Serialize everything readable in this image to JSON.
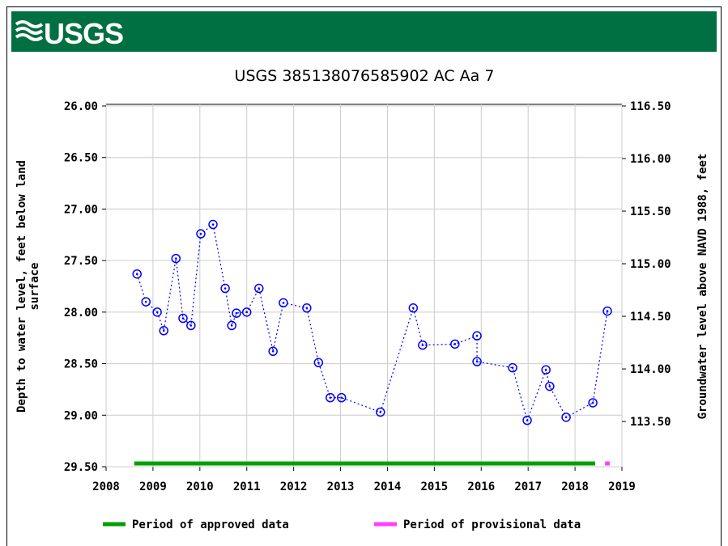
{
  "header": {
    "logo": "USGS"
  },
  "chart_data": {
    "type": "scatter",
    "title": "USGS 385138076585902 AC Aa   7",
    "y_label": [
      "Depth to water level, feet below land",
      "surface"
    ],
    "y2_label": "Groundwater level above NAVD 1988, feet",
    "xlim": [
      2008,
      2019
    ],
    "xticks": [
      2008,
      2009,
      2010,
      2011,
      2012,
      2013,
      2014,
      2015,
      2016,
      2017,
      2018,
      2019
    ],
    "ylim": [
      26,
      29.5
    ],
    "invert_y": true,
    "yticks": [
      {
        "value": 26,
        "label": "26.00"
      },
      {
        "value": 26.5,
        "label": "26.50"
      },
      {
        "value": 27,
        "label": "27.00"
      },
      {
        "value": 27.5,
        "label": "27.50"
      },
      {
        "value": 28,
        "label": "28.00"
      },
      {
        "value": 28.5,
        "label": "28.50"
      },
      {
        "value": 29,
        "label": "29.00"
      },
      {
        "value": 29.5,
        "label": "29.50"
      }
    ],
    "y2lim": [
      113.07,
      116.5
    ],
    "y2ticks": [
      {
        "value": 116.5,
        "label": "116.50"
      },
      {
        "value": 116,
        "label": "116.00"
      },
      {
        "value": 115.5,
        "label": "115.50"
      },
      {
        "value": 115,
        "label": "115.00"
      },
      {
        "value": 114.5,
        "label": "114.50"
      },
      {
        "value": 114,
        "label": "114.00"
      },
      {
        "value": 113.5,
        "label": "113.50"
      }
    ],
    "grid": true,
    "series": [
      {
        "color": "#0000ff",
        "x": [
          2008.66,
          2008.85,
          2009.09,
          2009.23,
          2009.49,
          2009.64,
          2009.81,
          2010.02,
          2010.28,
          2010.54,
          2010.68,
          2010.78,
          2011.0,
          2011.26,
          2011.56,
          2011.78,
          2012.28,
          2012.53,
          2012.78,
          2013.02,
          2013.85,
          2014.55,
          2014.75,
          2015.44,
          2015.91,
          2015.91,
          2016.67,
          2016.98,
          2017.38,
          2017.46,
          2017.81,
          2018.38,
          2018.69
        ],
        "values": [
          27.63,
          27.9,
          28.0,
          28.18,
          27.48,
          28.06,
          28.13,
          27.24,
          27.15,
          27.77,
          28.13,
          28.01,
          28.0,
          27.77,
          28.38,
          27.91,
          27.96,
          28.49,
          28.83,
          28.83,
          28.97,
          27.96,
          28.32,
          28.31,
          28.23,
          28.48,
          28.54,
          29.05,
          28.56,
          28.72,
          29.02,
          28.88,
          27.99
        ]
      }
    ],
    "periods": [
      {
        "name": "Period of approved data",
        "color": "#00a000",
        "start": 2008.6,
        "end": 2018.43
      },
      {
        "name": "Period of provisional data",
        "color": "#ff40ff",
        "start": 2018.64,
        "end": 2018.74
      }
    ]
  }
}
